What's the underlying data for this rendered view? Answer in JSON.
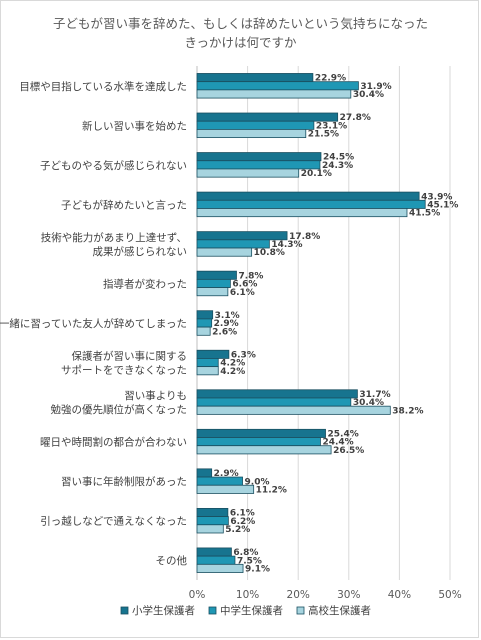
{
  "chart_data": {
    "type": "bar",
    "orientation": "horizontal",
    "title_line1": "子どもが習い事を辞めた、もしくは辞めたいという気持ちになった",
    "title_line2": "きっかけは何ですか",
    "categories": [
      [
        "目標や目指している水準を達成した"
      ],
      [
        "新しい習い事を始めた"
      ],
      [
        "子どものやる気が感じられない"
      ],
      [
        "子どもが辞めたいと言った"
      ],
      [
        "技術や能力があまり上達せず、",
        "成果が感じられない"
      ],
      [
        "指導者が変わった"
      ],
      [
        "一緒に習っていた友人が辞めてしまった"
      ],
      [
        "保護者が習い事に関する",
        "サポートをできなくなった"
      ],
      [
        "習い事よりも",
        "勉強の優先順位が高くなった"
      ],
      [
        "曜日や時間割の都合が合わない"
      ],
      [
        "習い事に年齢制限があった"
      ],
      [
        "引っ越しなどで通えなくなった"
      ],
      [
        "その他"
      ]
    ],
    "series": [
      {
        "name": "小学生保護者",
        "color": "#17748f",
        "values": [
          22.9,
          27.8,
          24.5,
          43.9,
          17.8,
          7.8,
          3.1,
          6.3,
          31.7,
          25.4,
          2.9,
          6.1,
          6.8
        ]
      },
      {
        "name": "中学生保護者",
        "color": "#1f97b4",
        "values": [
          31.9,
          23.1,
          24.3,
          45.1,
          14.3,
          6.6,
          2.9,
          4.2,
          30.4,
          24.4,
          9.0,
          6.2,
          7.5
        ]
      },
      {
        "name": "高校生保護者",
        "color": "#a7d4df",
        "values": [
          30.4,
          21.5,
          20.1,
          41.5,
          10.8,
          6.1,
          2.6,
          4.2,
          38.2,
          26.5,
          11.2,
          5.2,
          9.1
        ]
      }
    ],
    "xlim": [
      0,
      50
    ],
    "xticks": [
      0,
      10,
      20,
      30,
      40,
      50
    ],
    "xtick_labels": [
      "0%",
      "10%",
      "20%",
      "30%",
      "40%",
      "50%"
    ],
    "value_format": "%",
    "grid": true,
    "legend_position": "bottom"
  }
}
